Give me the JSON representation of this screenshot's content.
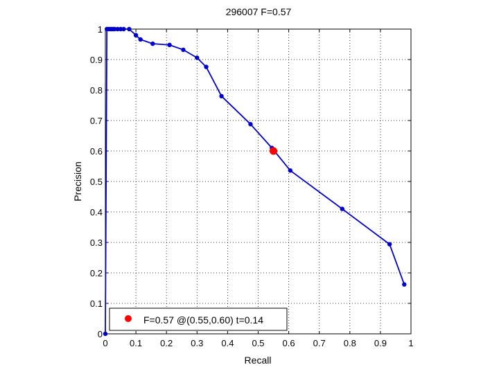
{
  "chart_data": {
    "type": "line",
    "title": "296007 F=0.57",
    "xlabel": "Recall",
    "ylabel": "Precision",
    "xlim": [
      0,
      1
    ],
    "ylim": [
      0,
      1
    ],
    "grid": true,
    "xticks": [
      "0",
      "0.1",
      "0.2",
      "0.3",
      "0.4",
      "0.5",
      "0.6",
      "0.7",
      "0.8",
      "0.9",
      "1"
    ],
    "yticks": [
      "0",
      "0.1",
      "0.2",
      "0.3",
      "0.4",
      "0.5",
      "0.6",
      "0.7",
      "0.8",
      "0.9",
      "1"
    ],
    "series": [
      {
        "color": "#0000cc",
        "marker": "dot",
        "points": [
          [
            0,
            0
          ],
          [
            0.005,
            1.0
          ],
          [
            0.01,
            1.0
          ],
          [
            0.015,
            1.0
          ],
          [
            0.02,
            1.0
          ],
          [
            0.025,
            1.0
          ],
          [
            0.03,
            1.0
          ],
          [
            0.04,
            1.0
          ],
          [
            0.05,
            1.0
          ],
          [
            0.06,
            1.0
          ],
          [
            0.078,
            1.0
          ],
          [
            0.1,
            0.98
          ],
          [
            0.115,
            0.966
          ],
          [
            0.155,
            0.952
          ],
          [
            0.21,
            0.948
          ],
          [
            0.255,
            0.932
          ],
          [
            0.3,
            0.906
          ],
          [
            0.33,
            0.876
          ],
          [
            0.38,
            0.78
          ],
          [
            0.475,
            0.688
          ],
          [
            0.545,
            0.61
          ],
          [
            0.605,
            0.536
          ],
          [
            0.775,
            0.41
          ],
          [
            0.93,
            0.294
          ],
          [
            0.978,
            0.162
          ]
        ]
      }
    ],
    "best_point": {
      "x": 0.55,
      "y": 0.6,
      "color": "#ff0000",
      "label": "F=0.57 @(0.55,0.60) t=0.14"
    },
    "legend_position": "bottom-left"
  }
}
